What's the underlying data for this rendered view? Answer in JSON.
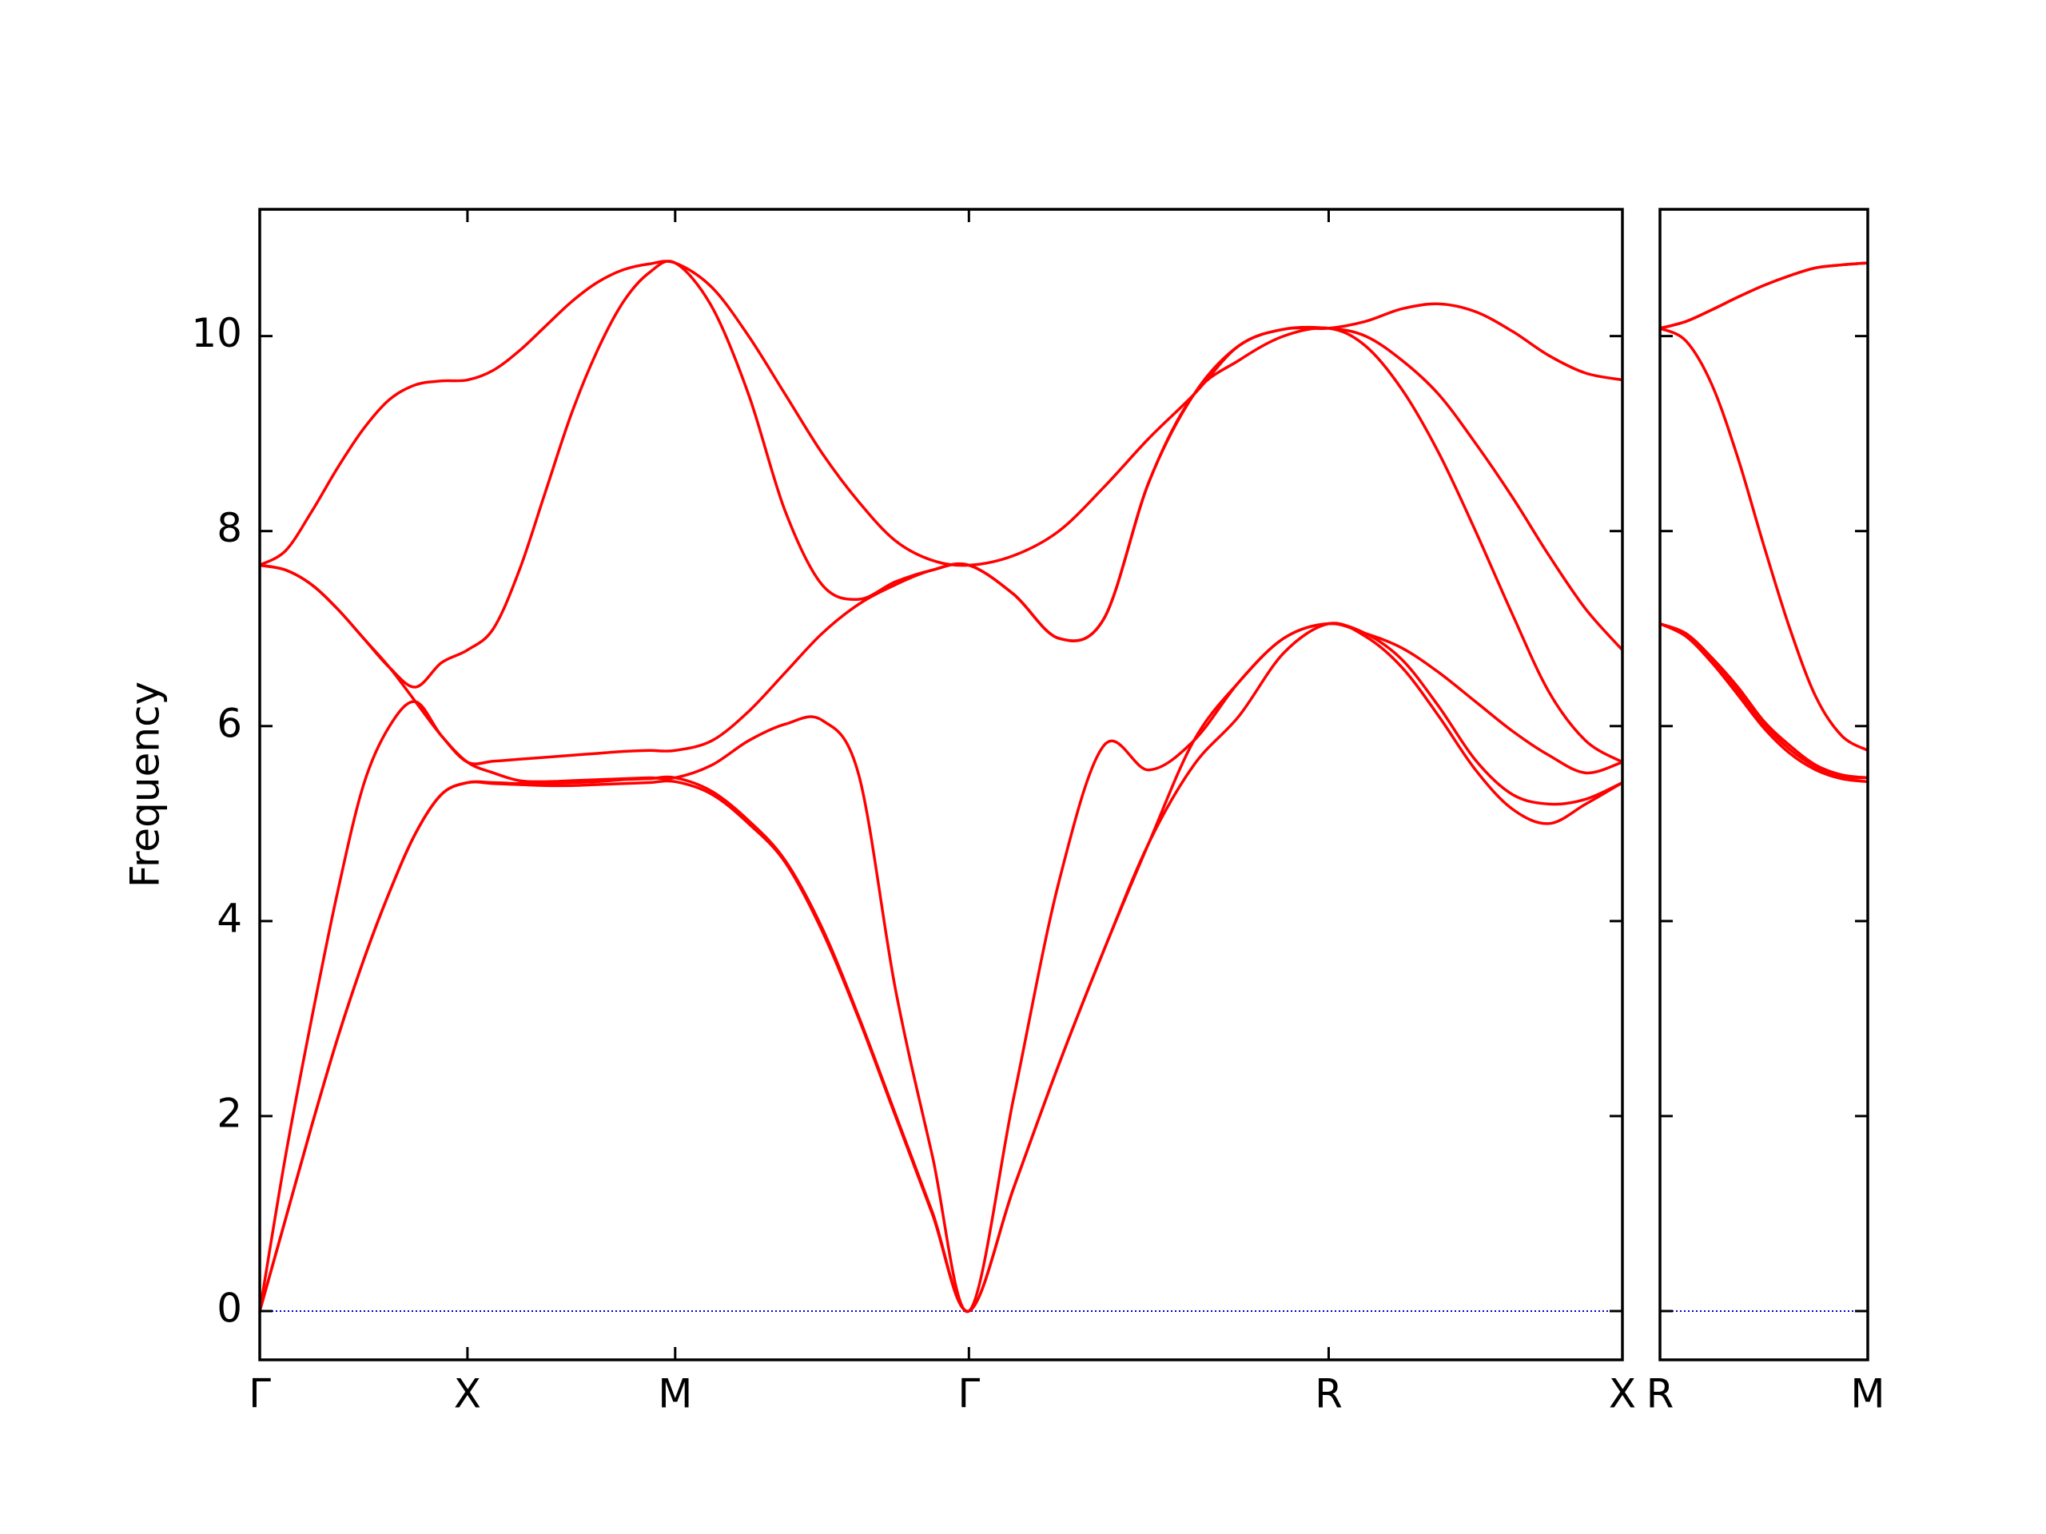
{
  "chart_data": [
    {
      "type": "line",
      "ylabel": "Frequency",
      "color": "#ff0000",
      "zero_line": true,
      "zero_line_color": "#0000cc",
      "xlim": [
        0,
        3.2802
      ],
      "ylim": [
        -0.5,
        11.3
      ],
      "yticks": [
        0,
        2,
        4,
        6,
        8,
        10
      ],
      "ytick_labels": true,
      "xticks": [
        {
          "value": 0,
          "label": "Γ"
        },
        {
          "value": 0.5,
          "label": "X"
        },
        {
          "value": 1.0,
          "label": "M"
        },
        {
          "value": 1.7071,
          "label": "Γ"
        },
        {
          "value": 2.5731,
          "label": "R"
        },
        {
          "value": 3.2802,
          "label": "X"
        }
      ],
      "x": [
        0,
        0.0625,
        0.125,
        0.1875,
        0.25,
        0.3125,
        0.375,
        0.4375,
        0.5,
        0.5625,
        0.625,
        0.6875,
        0.75,
        0.8125,
        0.875,
        0.9375,
        1.0,
        1.0884,
        1.1768,
        1.2652,
        1.3536,
        1.4419,
        1.5303,
        1.6187,
        1.7071,
        1.8154,
        1.9236,
        2.0319,
        2.1401,
        2.2484,
        2.3567,
        2.4649,
        2.5731,
        2.6615,
        2.7499,
        2.8383,
        2.9267,
        3.015,
        3.1034,
        3.1918,
        3.2802
      ],
      "series": [
        {
          "values": [
            0,
            0.95,
            1.9,
            2.8,
            3.6,
            4.3,
            4.9,
            5.3,
            5.42,
            5.41,
            5.4,
            5.39,
            5.39,
            5.4,
            5.41,
            5.42,
            5.43,
            5.3,
            5.0,
            4.6,
            3.9,
            3.0,
            2.0,
            1.0,
            0,
            1.27,
            2.53,
            3.7,
            4.8,
            5.6,
            6.1,
            6.75,
            7.05,
            6.92,
            6.6,
            6.1,
            5.55,
            5.15,
            5.0,
            5.2,
            5.42
          ]
        },
        {
          "values": [
            0,
            0.95,
            1.9,
            2.8,
            3.6,
            4.3,
            4.9,
            5.3,
            5.42,
            5.42,
            5.41,
            5.41,
            5.42,
            5.43,
            5.45,
            5.46,
            5.47,
            5.33,
            5.03,
            4.62,
            3.93,
            3.02,
            2.02,
            1.02,
            0,
            1.27,
            2.53,
            3.7,
            4.8,
            5.85,
            6.45,
            6.9,
            7.05,
            6.95,
            6.68,
            6.2,
            5.65,
            5.3,
            5.2,
            5.25,
            5.42
          ]
        },
        {
          "values": [
            0,
            1.6,
            3.0,
            4.3,
            5.4,
            6.0,
            6.25,
            5.9,
            5.63,
            5.52,
            5.44,
            5.43,
            5.44,
            5.45,
            5.46,
            5.47,
            5.47,
            5.6,
            5.85,
            6.02,
            6.06,
            5.5,
            3.3,
            1.6,
            0,
            2.2,
            4.4,
            5.8,
            5.55,
            5.85,
            6.45,
            6.9,
            7.05,
            6.95,
            6.8,
            6.55,
            6.25,
            5.95,
            5.7,
            5.52,
            5.63
          ]
        },
        {
          "values": [
            7.65,
            7.6,
            7.45,
            7.2,
            6.9,
            6.6,
            6.25,
            5.9,
            5.63,
            5.64,
            5.66,
            5.68,
            5.7,
            5.72,
            5.74,
            5.75,
            5.75,
            5.85,
            6.15,
            6.55,
            6.95,
            7.25,
            7.45,
            7.6,
            7.65,
            7.35,
            6.9,
            7.1,
            8.5,
            9.4,
            9.75,
            10.0,
            10.08,
            9.9,
            9.45,
            8.8,
            8.0,
            7.15,
            6.35,
            5.85,
            5.63
          ]
        },
        {
          "values": [
            7.65,
            7.6,
            7.45,
            7.2,
            6.9,
            6.6,
            6.4,
            6.65,
            6.78,
            7.0,
            7.6,
            8.4,
            9.2,
            9.85,
            10.35,
            10.65,
            10.75,
            10.3,
            9.4,
            8.2,
            7.45,
            7.3,
            7.48,
            7.6,
            7.65,
            7.35,
            6.9,
            7.1,
            8.5,
            9.4,
            9.9,
            10.07,
            10.08,
            10.0,
            9.75,
            9.4,
            8.9,
            8.35,
            7.75,
            7.2,
            6.78
          ]
        },
        {
          "values": [
            7.65,
            7.8,
            8.2,
            8.65,
            9.05,
            9.35,
            9.5,
            9.54,
            9.55,
            9.65,
            9.85,
            10.1,
            10.35,
            10.55,
            10.68,
            10.74,
            10.75,
            10.5,
            10.0,
            9.4,
            8.8,
            8.3,
            7.9,
            7.7,
            7.65,
            7.75,
            8.0,
            8.45,
            8.95,
            9.4,
            9.9,
            10.07,
            10.08,
            10.15,
            10.28,
            10.33,
            10.25,
            10.05,
            9.8,
            9.62,
            9.55
          ]
        }
      ]
    },
    {
      "type": "line",
      "color": "#ff0000",
      "zero_line": true,
      "zero_line_color": "#0000cc",
      "xlim": [
        0,
        0.5
      ],
      "ylim": [
        -0.5,
        11.3
      ],
      "yticks": [
        0,
        2,
        4,
        6,
        8,
        10
      ],
      "ytick_labels": false,
      "xticks": [
        {
          "value": 0,
          "label": "R"
        },
        {
          "value": 0.5,
          "label": "M"
        }
      ],
      "x": [
        0,
        0.0625,
        0.125,
        0.1875,
        0.25,
        0.3125,
        0.375,
        0.4375,
        0.5
      ],
      "series": [
        {
          "values": [
            7.05,
            6.92,
            6.65,
            6.32,
            5.98,
            5.72,
            5.55,
            5.46,
            5.43
          ]
        },
        {
          "values": [
            7.05,
            6.94,
            6.68,
            6.36,
            6.02,
            5.76,
            5.58,
            5.48,
            5.47
          ]
        },
        {
          "values": [
            7.05,
            6.95,
            6.7,
            6.4,
            6.05,
            5.8,
            5.6,
            5.5,
            5.47
          ]
        },
        {
          "values": [
            10.08,
            9.95,
            9.5,
            8.75,
            7.85,
            7.0,
            6.3,
            5.9,
            5.75
          ]
        },
        {
          "values": [
            10.08,
            10.15,
            10.27,
            10.4,
            10.52,
            10.62,
            10.7,
            10.73,
            10.75
          ]
        },
        {
          "values": [
            10.08,
            10.15,
            10.27,
            10.4,
            10.52,
            10.62,
            10.7,
            10.73,
            10.75
          ]
        }
      ]
    }
  ]
}
